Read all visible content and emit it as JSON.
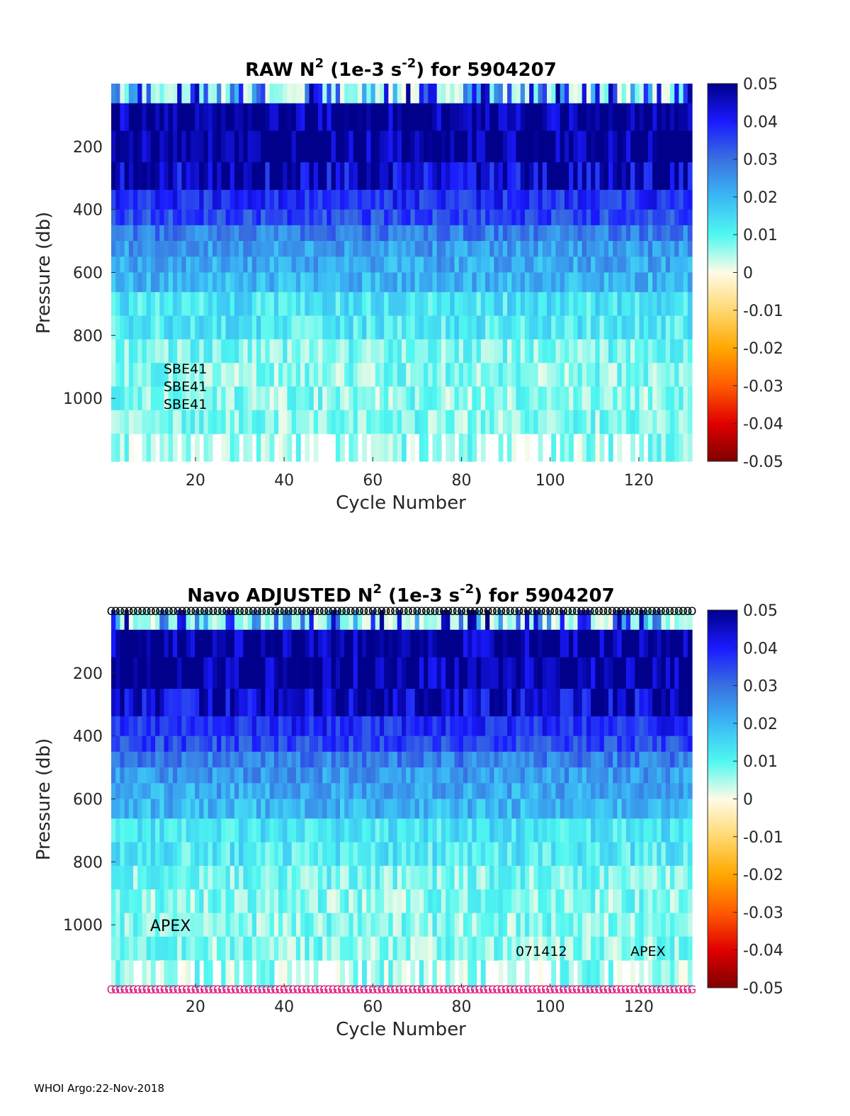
{
  "chart_data": [
    {
      "type": "heatmap",
      "title": {
        "prefix": "RAW N",
        "sup1": "2",
        "mid": " (1e-3 s",
        "sup2": "-2",
        "suffix": ") for 5904207"
      },
      "xlabel": "Cycle Number",
      "ylabel": "Pressure (db)",
      "xlim": [
        1,
        132
      ],
      "ylim": [
        0,
        1200
      ],
      "xticks": [
        "20",
        "40",
        "60",
        "80",
        "100",
        "120"
      ],
      "xtick_values": [
        20,
        40,
        60,
        80,
        100,
        120
      ],
      "yticks": [
        "200",
        "400",
        "600",
        "800",
        "1000"
      ],
      "ytick_values": [
        200,
        400,
        600,
        800,
        1000
      ],
      "colorbar": {
        "min": -0.05,
        "max": 0.05,
        "ticks": [
          "0.05",
          "0.04",
          "0.03",
          "0.02",
          "0.01",
          "0",
          "-0.01",
          "-0.02",
          "-0.03",
          "-0.04",
          "-0.05"
        ]
      },
      "annotations": [
        "SBE41",
        "SBE41",
        "SBE41"
      ],
      "profile": {
        "pressure_bins": [
          25,
          100,
          200,
          300,
          375,
          425,
          475,
          525,
          575,
          625,
          700,
          775,
          850,
          925,
          1000,
          1075,
          1150
        ],
        "typical_values": [
          0.005,
          0.05,
          0.05,
          0.045,
          0.038,
          0.035,
          0.028,
          0.024,
          0.022,
          0.02,
          0.013,
          0.012,
          0.008,
          0.007,
          0.007,
          0.007,
          0.006
        ]
      },
      "colors": {
        "low": "#7f0000",
        "zero": "#fffbe6",
        "high": "#00008b"
      }
    },
    {
      "type": "heatmap",
      "title": {
        "prefix": "Navo  ADJUSTED N",
        "sup1": "2",
        "mid": " (1e-3 s",
        "sup2": "-2",
        "suffix": ") for 5904207"
      },
      "xlabel": "Cycle Number",
      "ylabel": "Pressure (db)",
      "xlim": [
        1,
        132
      ],
      "ylim": [
        0,
        1200
      ],
      "xticks": [
        "20",
        "40",
        "60",
        "80",
        "100",
        "120"
      ],
      "xtick_values": [
        20,
        40,
        60,
        80,
        100,
        120
      ],
      "yticks": [
        "200",
        "400",
        "600",
        "800",
        "1000"
      ],
      "ytick_values": [
        200,
        400,
        600,
        800,
        1000
      ],
      "colorbar": {
        "min": -0.05,
        "max": 0.05,
        "ticks": [
          "0.05",
          "0.04",
          "0.03",
          "0.02",
          "0.01",
          "0",
          "-0.01",
          "-0.02",
          "-0.03",
          "-0.04",
          "-0.05"
        ]
      },
      "annotations": [
        "APEX",
        "071412",
        "APEX"
      ],
      "top_markers": {
        "symbol": "O",
        "color": "#000000"
      },
      "bottom_markers": {
        "symbol": "G",
        "color": "#e0197d"
      },
      "profile": {
        "pressure_bins": [
          25,
          100,
          200,
          300,
          375,
          425,
          475,
          525,
          575,
          625,
          700,
          775,
          850,
          925,
          1000,
          1075,
          1150
        ],
        "typical_values": [
          0.005,
          0.05,
          0.05,
          0.045,
          0.038,
          0.035,
          0.028,
          0.024,
          0.022,
          0.02,
          0.013,
          0.012,
          0.008,
          0.007,
          0.007,
          0.007,
          0.006
        ]
      },
      "colors": {
        "low": "#7f0000",
        "zero": "#fffbe6",
        "high": "#00008b"
      }
    }
  ],
  "footer": "WHOI Argo:22-Nov-2018"
}
